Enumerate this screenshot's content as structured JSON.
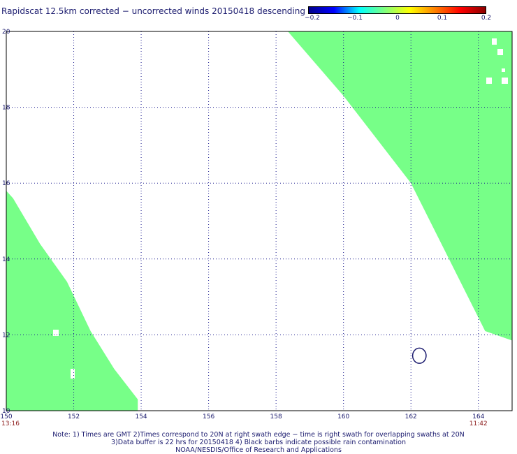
{
  "title": "Rapidscat 12.5km corrected − uncorrected winds 20150418 descending",
  "colorbar": {
    "ticks": [
      "−0.2",
      "−0.1",
      "0",
      "0.1",
      "0.2"
    ],
    "tick_values": [
      -0.2,
      -0.1,
      0,
      0.1,
      0.2
    ],
    "range": [
      -0.2,
      0.2
    ],
    "gradient": [
      "#00008b",
      "#0000ff",
      "#00ffff",
      "#7fff7f",
      "#ffff00",
      "#ff8000",
      "#ff0000",
      "#8b0000"
    ]
  },
  "map": {
    "lon_range": [
      150,
      165
    ],
    "lat_range": [
      10,
      20
    ],
    "lon_ticks": [
      "150",
      "152",
      "154",
      "156",
      "158",
      "160",
      "162",
      "164"
    ],
    "lat_ticks": [
      "10",
      "12",
      "14",
      "16",
      "18",
      "20"
    ],
    "fill_color": "#77ff88",
    "grid": "dotted",
    "time_left": "13:16",
    "time_right": "11:42",
    "swaths": [
      {
        "name": "right-swath",
        "polygon_lonlat": [
          [
            158.35,
            20
          ],
          [
            165,
            20
          ],
          [
            165,
            11.85
          ],
          [
            164.2,
            12.1
          ],
          [
            162,
            16
          ],
          [
            160,
            18.3
          ],
          [
            158.35,
            20
          ]
        ]
      },
      {
        "name": "left-swath",
        "polygon_lonlat": [
          [
            150,
            15.8
          ],
          [
            150.2,
            15.6
          ],
          [
            151,
            14.4
          ],
          [
            151.8,
            13.4
          ],
          [
            152.5,
            12.1
          ],
          [
            153.2,
            11.1
          ],
          [
            153.9,
            10.3
          ],
          [
            153.9,
            10
          ],
          [
            150,
            10
          ]
        ]
      }
    ],
    "contour": {
      "name": "small-loop",
      "center_lonlat": [
        162.25,
        11.45
      ],
      "radius_deg": [
        0.2,
        0.2
      ]
    }
  },
  "notes": {
    "line1": "Note: 1) Times are GMT 2)Times correspond to 20N at right swath edge − time is right swath for overlapping swaths at 20N",
    "line2": "3)Data buffer is 22 hrs for 20150418 4) Black barbs indicate possible rain contamination",
    "line3": "NOAA/NESDIS/Office of Research and Applications"
  }
}
